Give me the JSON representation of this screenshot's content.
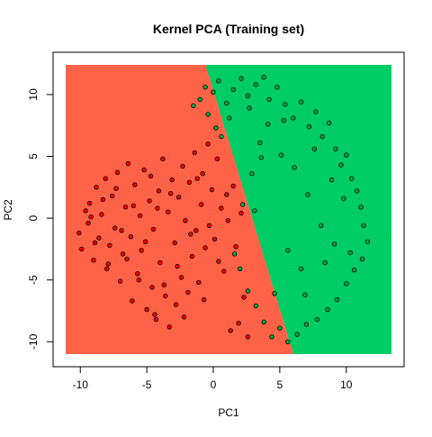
{
  "chart_data": {
    "type": "scatter",
    "title": "Kernel PCA (Training set)",
    "xlabel": "PC1",
    "ylabel": "PC2",
    "xlim": [
      -11.1,
      13.4
    ],
    "ylim": [
      -11.0,
      12.4
    ],
    "x_ticks": [
      -10,
      -5,
      0,
      5,
      10
    ],
    "y_ticks": [
      -10,
      -5,
      0,
      5,
      10
    ],
    "x_tick_labels": [
      "-10",
      "-5",
      "0",
      "5",
      "10"
    ],
    "y_tick_labels": [
      "-10",
      "-5",
      "0",
      "5",
      "10"
    ],
    "grid": false,
    "decision_regions": [
      {
        "class": "0",
        "color": "#ff6347",
        "polygon": [
          [
            -11.1,
            -11.0
          ],
          [
            6.0,
            -11.0
          ],
          [
            -0.6,
            12.4
          ],
          [
            -11.1,
            12.4
          ]
        ]
      },
      {
        "class": "1",
        "color": "#00cc66",
        "polygon": [
          [
            -0.6,
            12.4
          ],
          [
            13.4,
            12.4
          ],
          [
            13.4,
            -11.0
          ],
          [
            6.0,
            -11.0
          ]
        ]
      }
    ],
    "series": [
      {
        "class": "0",
        "color": "#ff0000",
        "points": [
          [
            -10.1,
            -1.2
          ],
          [
            -9.9,
            -2.5
          ],
          [
            -9.6,
            0.6
          ],
          [
            -9.3,
            1.2
          ],
          [
            -9.4,
            -0.4
          ],
          [
            -9.0,
            -3.4
          ],
          [
            -8.8,
            2.5
          ],
          [
            -8.6,
            -1.6
          ],
          [
            -8.4,
            0.3
          ],
          [
            -8.1,
            3.2
          ],
          [
            -8.0,
            -4.1
          ],
          [
            -7.8,
            -2.2
          ],
          [
            -7.6,
            1.8
          ],
          [
            -7.4,
            -0.8
          ],
          [
            -7.2,
            3.7
          ],
          [
            -7.0,
            -5.1
          ],
          [
            -6.8,
            -2.9
          ],
          [
            -6.6,
            0.9
          ],
          [
            -6.4,
            4.4
          ],
          [
            -6.2,
            -1.5
          ],
          [
            -6.1,
            -6.7
          ],
          [
            -5.9,
            2.7
          ],
          [
            -5.7,
            -4.5
          ],
          [
            -5.5,
            0.2
          ],
          [
            -5.4,
            -2.6
          ],
          [
            -5.2,
            3.9
          ],
          [
            -5.0,
            -7.4
          ],
          [
            -4.8,
            1.4
          ],
          [
            -4.6,
            -5.6
          ],
          [
            -4.5,
            -0.9
          ],
          [
            -4.3,
            -8.2
          ],
          [
            -4.1,
            2.2
          ],
          [
            -4.0,
            -3.6
          ],
          [
            -3.8,
            4.8
          ],
          [
            -3.6,
            -6.3
          ],
          [
            -3.4,
            0.5
          ],
          [
            -3.3,
            -8.8
          ],
          [
            -3.1,
            3.1
          ],
          [
            -2.9,
            -2.0
          ],
          [
            -2.8,
            -7.0
          ],
          [
            -2.6,
            1.7
          ],
          [
            -2.4,
            -4.8
          ],
          [
            -2.3,
            4.2
          ],
          [
            -2.1,
            -0.2
          ],
          [
            -1.9,
            -6.0
          ],
          [
            -1.8,
            2.9
          ],
          [
            -1.6,
            -3.1
          ],
          [
            -1.4,
            5.3
          ],
          [
            -1.3,
            -1.0
          ],
          [
            -1.1,
            -5.2
          ],
          [
            -0.9,
            1.1
          ],
          [
            -0.8,
            3.6
          ],
          [
            -0.6,
            -2.4
          ],
          [
            -0.4,
            6.0
          ],
          [
            -0.3,
            -0.6
          ],
          [
            -0.1,
            2.3
          ],
          [
            0.1,
            -1.7
          ],
          [
            0.3,
            4.8
          ],
          [
            0.4,
            -3.5
          ],
          [
            0.6,
            0.8
          ],
          [
            0.8,
            -4.3
          ],
          [
            1.0,
            1.9
          ],
          [
            1.1,
            -0.2
          ],
          [
            1.3,
            -9.1
          ],
          [
            1.5,
            2.6
          ],
          [
            1.7,
            -2.3
          ],
          [
            1.9,
            -8.5
          ],
          [
            2.1,
            0.4
          ],
          [
            2.3,
            -6.4
          ],
          [
            2.6,
            -9.6
          ],
          [
            -9.2,
            0.1
          ],
          [
            -8.9,
            -2.0
          ],
          [
            -8.3,
            1.5
          ],
          [
            -7.9,
            -3.7
          ],
          [
            -7.3,
            2.4
          ],
          [
            -6.9,
            -1.0
          ],
          [
            -6.5,
            -3.3
          ],
          [
            -6.0,
            1.0
          ],
          [
            -5.6,
            -5.0
          ],
          [
            -5.1,
            -1.9
          ],
          [
            -4.7,
            3.4
          ],
          [
            -4.4,
            -7.8
          ],
          [
            -4.2,
            0.8
          ],
          [
            -3.7,
            -5.4
          ],
          [
            -3.2,
            2.0
          ],
          [
            -2.7,
            -3.9
          ],
          [
            -2.2,
            -8.0
          ],
          [
            -1.7,
            -1.3
          ],
          [
            -1.2,
            3.2
          ],
          [
            -0.7,
            -6.6
          ]
        ]
      },
      {
        "class": "1",
        "color": "#00aa44",
        "points": [
          [
            -1.5,
            9.1
          ],
          [
            -1.0,
            9.6
          ],
          [
            -0.6,
            10.6
          ],
          [
            0.0,
            10.2
          ],
          [
            0.4,
            11.1
          ],
          [
            1.0,
            9.3
          ],
          [
            1.5,
            10.4
          ],
          [
            2.1,
            11.3
          ],
          [
            2.6,
            9.9
          ],
          [
            3.2,
            10.8
          ],
          [
            3.8,
            11.4
          ],
          [
            4.2,
            9.6
          ],
          [
            4.8,
            10.6
          ],
          [
            5.4,
            9.2
          ],
          [
            6.0,
            8.1
          ],
          [
            6.6,
            9.4
          ],
          [
            7.2,
            7.4
          ],
          [
            7.7,
            8.6
          ],
          [
            8.2,
            6.6
          ],
          [
            8.7,
            7.7
          ],
          [
            9.2,
            5.6
          ],
          [
            9.6,
            4.3
          ],
          [
            10.0,
            5.1
          ],
          [
            10.4,
            3.2
          ],
          [
            10.8,
            2.2
          ],
          [
            11.1,
            0.9
          ],
          [
            11.3,
            -0.6
          ],
          [
            11.6,
            -1.9
          ],
          [
            11.2,
            -3.3
          ],
          [
            10.6,
            -4.2
          ],
          [
            10.0,
            -5.3
          ],
          [
            9.3,
            -6.6
          ],
          [
            8.6,
            -7.4
          ],
          [
            7.8,
            -8.2
          ],
          [
            7.0,
            -8.6
          ],
          [
            6.3,
            -9.4
          ],
          [
            5.6,
            -10.0
          ],
          [
            5.0,
            -8.9
          ],
          [
            4.4,
            -9.6
          ],
          [
            3.8,
            -8.4
          ],
          [
            3.2,
            -7.1
          ],
          [
            2.6,
            -5.9
          ],
          [
            2.0,
            -4.1
          ],
          [
            1.6,
            -2.9
          ],
          [
            2.2,
            1.1
          ],
          [
            2.9,
            3.6
          ],
          [
            3.5,
            6.1
          ],
          [
            4.1,
            7.6
          ],
          [
            5.1,
            5.1
          ],
          [
            6.1,
            4.1
          ],
          [
            7.1,
            1.9
          ],
          [
            8.1,
            -0.6
          ],
          [
            9.1,
            -2.1
          ],
          [
            8.9,
            3.1
          ],
          [
            7.6,
            5.6
          ],
          [
            6.6,
            -4.1
          ],
          [
            5.6,
            -2.6
          ],
          [
            4.6,
            -6.1
          ],
          [
            3.1,
            0.6
          ],
          [
            0.6,
            6.6
          ],
          [
            1.2,
            8.1
          ],
          [
            -0.4,
            8.4
          ],
          [
            0.2,
            7.3
          ],
          [
            9.8,
            1.6
          ],
          [
            10.3,
            -2.8
          ],
          [
            8.4,
            -3.6
          ],
          [
            6.9,
            -6.2
          ],
          [
            5.3,
            7.9
          ],
          [
            2.7,
            8.9
          ],
          [
            3.6,
            4.9
          ]
        ]
      }
    ]
  }
}
